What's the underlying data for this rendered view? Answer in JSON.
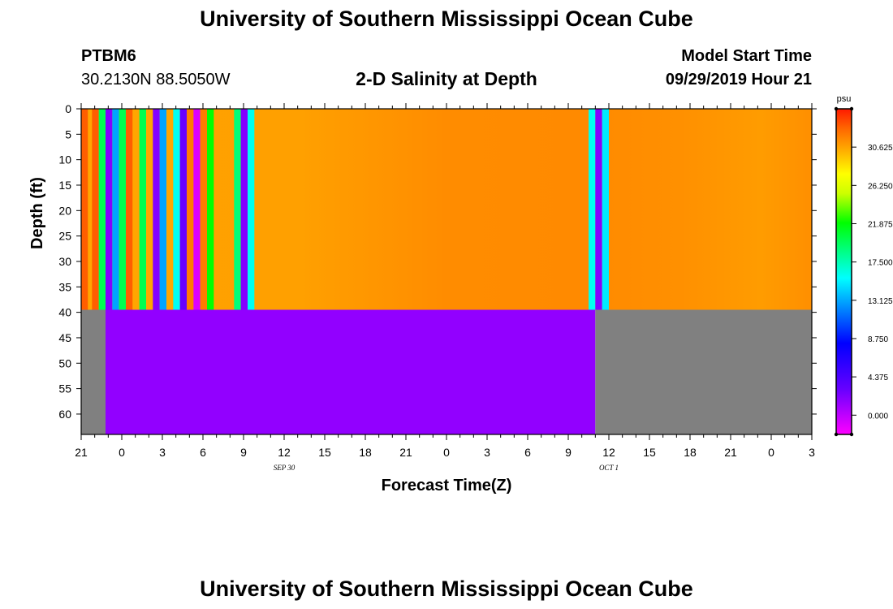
{
  "header": {
    "title": "University of Southern Mississippi Ocean Cube",
    "station": "PTBM6",
    "coords": "30.2130N 88.5050W",
    "subtitle": "2-D Salinity at Depth",
    "model_start_label": "Model Start Time",
    "model_start_value": "09/29/2019 Hour 21"
  },
  "footer": {
    "title": "University of Southern Mississippi Ocean Cube"
  },
  "chart_data": {
    "type": "heatmap",
    "title": "2-D Salinity at Depth",
    "xlabel": "Forecast Time(Z)",
    "ylabel": "Depth (ft)",
    "x_tick_labels": [
      "21",
      "0",
      "3",
      "6",
      "9",
      "12",
      "15",
      "18",
      "21",
      "0",
      "3",
      "6",
      "9",
      "12",
      "15",
      "18",
      "21",
      "0",
      "3"
    ],
    "x_range_hours": [
      0,
      54
    ],
    "y_tick_labels": [
      "0",
      "5",
      "10",
      "15",
      "20",
      "25",
      "30",
      "35",
      "40",
      "45",
      "50",
      "55",
      "60"
    ],
    "y_range_ft": [
      0,
      64
    ],
    "date_labels": [
      {
        "text": "SEP 30",
        "hour": 15
      },
      {
        "text": "OCT 1",
        "hour": 39
      }
    ],
    "colorbar": {
      "unit": "psu",
      "labels": [
        "30.625",
        "26.250",
        "21.875",
        "17.500",
        "13.125",
        "8.750",
        "4.375",
        "0.000"
      ],
      "values": [
        30.625,
        26.25,
        21.875,
        17.5,
        13.125,
        8.75,
        4.375,
        0.0
      ],
      "range": [
        -2.2,
        35.0
      ]
    },
    "no_data_color": "#808080",
    "surface_layer": {
      "depth_ft": [
        0,
        39.5
      ],
      "background_psu": 28.5,
      "stripes": [
        {
          "start": 0.0,
          "end": 0.5,
          "psu": 33.0
        },
        {
          "start": 0.5,
          "end": 0.8,
          "psu": 30.5
        },
        {
          "start": 0.8,
          "end": 1.3,
          "psu": 33.0
        },
        {
          "start": 1.3,
          "end": 1.8,
          "psu": 20.0
        },
        {
          "start": 1.8,
          "end": 2.3,
          "psu": 2.0
        },
        {
          "start": 2.3,
          "end": 2.8,
          "psu": 13.0
        },
        {
          "start": 2.8,
          "end": 3.3,
          "psu": 20.0
        },
        {
          "start": 3.3,
          "end": 3.8,
          "psu": 33.0
        },
        {
          "start": 3.8,
          "end": 4.3,
          "psu": 30.5
        },
        {
          "start": 4.3,
          "end": 4.8,
          "psu": 20.0
        },
        {
          "start": 4.8,
          "end": 5.3,
          "psu": 30.5
        },
        {
          "start": 5.3,
          "end": 5.8,
          "psu": 2.0
        },
        {
          "start": 5.8,
          "end": 6.3,
          "psu": 13.0
        },
        {
          "start": 6.3,
          "end": 6.8,
          "psu": 30.5
        },
        {
          "start": 6.8,
          "end": 7.3,
          "psu": 16.0
        },
        {
          "start": 7.3,
          "end": 7.8,
          "psu": 3.0
        },
        {
          "start": 7.8,
          "end": 8.3,
          "psu": 32.0
        },
        {
          "start": 8.3,
          "end": 8.8,
          "psu": -1.0
        },
        {
          "start": 8.8,
          "end": 9.3,
          "psu": 32.0
        },
        {
          "start": 9.3,
          "end": 9.8,
          "psu": 22.0
        },
        {
          "start": 11.3,
          "end": 11.8,
          "psu": 19.0
        },
        {
          "start": 11.8,
          "end": 12.3,
          "psu": 2.0
        },
        {
          "start": 12.3,
          "end": 12.8,
          "psu": 16.0
        },
        {
          "start": 37.5,
          "end": 38.0,
          "psu": 16.0
        },
        {
          "start": 38.0,
          "end": 38.5,
          "psu": 2.0
        },
        {
          "start": 38.5,
          "end": 39.0,
          "psu": 15.0
        }
      ]
    },
    "deep_layer": {
      "depth_ft": [
        39.5,
        64
      ],
      "regions": [
        {
          "start": 0.0,
          "end": 1.8,
          "psu": null
        },
        {
          "start": 1.8,
          "end": 38.0,
          "psu": 1.5
        },
        {
          "start": 38.0,
          "end": 54.0,
          "psu": null
        }
      ]
    }
  }
}
